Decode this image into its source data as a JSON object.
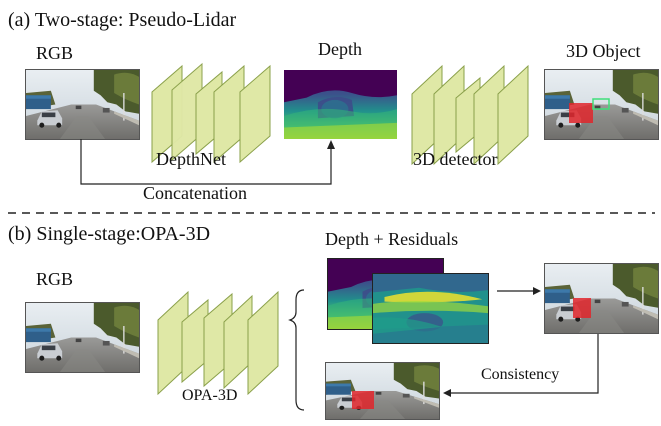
{
  "sections": {
    "a_title": "(a) Two-stage: Pseudo-Lidar",
    "b_title": "(b) Single-stage:OPA-3D"
  },
  "stage_a": {
    "rgb_label": "RGB",
    "depthnet_label": "DepthNet",
    "depth_label": "Depth",
    "detector_label": "3D detector",
    "object_label": "3D Object",
    "concat_label": "Concatenation"
  },
  "stage_b": {
    "rgb_label": "RGB",
    "net_label": "OPA-3D",
    "depth_res_label": "Depth + Residuals",
    "consistency_label": "Consistency"
  },
  "colors": {
    "layer_fill": "#dfe8a6",
    "layer_stroke": "#8aa04a",
    "depth_far": "#440154",
    "depth_mid": "#2a788e",
    "depth_near": "#7ad151",
    "box_red": "#e0262b",
    "box_green": "#3fe07a"
  }
}
